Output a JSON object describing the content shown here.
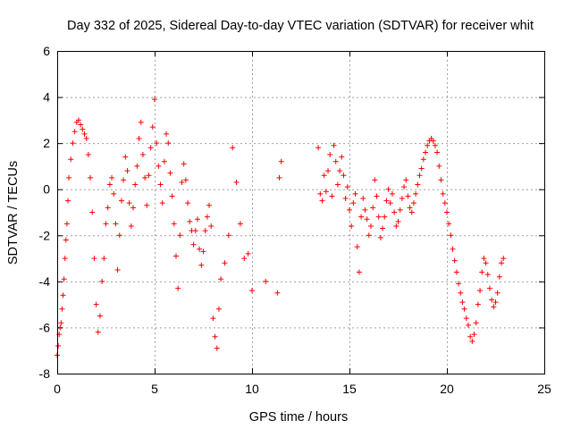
{
  "chart_data": {
    "type": "scatter",
    "title": "Day 332 of 2025, Sidereal Day-to-day VTEC variation (SDTVAR) for receiver whit",
    "xlabel": "GPS time / hours",
    "ylabel": "SDTVAR / TECUs",
    "xlim": [
      0,
      25
    ],
    "ylim": [
      -8,
      6
    ],
    "xticks": [
      "0",
      "5",
      "10",
      "15",
      "20",
      "25"
    ],
    "yticks": [
      "-8",
      "-6",
      "-4",
      "-2",
      "0",
      "2",
      "4",
      "6"
    ],
    "grid": true,
    "marker": "plus",
    "color": "#ff0000",
    "series": [
      {
        "name": "SDTVAR",
        "x": [
          0.0,
          0.05,
          0.1,
          0.15,
          0.2,
          0.25,
          0.3,
          0.35,
          0.4,
          0.45,
          0.5,
          0.55,
          0.6,
          0.7,
          0.8,
          0.9,
          1.0,
          1.1,
          1.2,
          1.3,
          1.4,
          1.5,
          1.6,
          1.7,
          1.8,
          1.9,
          2.0,
          2.1,
          2.2,
          2.3,
          2.4,
          2.5,
          2.6,
          2.7,
          2.8,
          2.9,
          3.0,
          3.1,
          3.2,
          3.3,
          3.4,
          3.5,
          3.6,
          3.7,
          3.8,
          3.9,
          4.0,
          4.1,
          4.2,
          4.3,
          4.4,
          4.5,
          4.6,
          4.7,
          4.8,
          4.9,
          5.0,
          5.1,
          5.2,
          5.3,
          5.4,
          5.5,
          5.6,
          5.7,
          5.8,
          5.9,
          6.0,
          6.1,
          6.2,
          6.3,
          6.4,
          6.5,
          6.6,
          6.7,
          6.8,
          6.9,
          7.0,
          7.1,
          7.2,
          7.3,
          7.4,
          7.5,
          7.6,
          7.7,
          7.8,
          7.9,
          8.0,
          8.1,
          8.2,
          8.3,
          8.4,
          8.6,
          8.8,
          9.0,
          9.2,
          9.4,
          9.6,
          9.8,
          10.0,
          10.7,
          11.3,
          11.4,
          11.5,
          13.4,
          13.5,
          13.6,
          13.7,
          13.8,
          13.9,
          14.0,
          14.1,
          14.2,
          14.3,
          14.4,
          14.5,
          14.6,
          14.7,
          14.8,
          14.9,
          15.0,
          15.1,
          15.2,
          15.3,
          15.4,
          15.5,
          15.6,
          15.7,
          15.8,
          15.9,
          16.0,
          16.1,
          16.2,
          16.3,
          16.4,
          16.5,
          16.6,
          16.7,
          16.8,
          16.9,
          17.0,
          17.1,
          17.2,
          17.3,
          17.4,
          17.5,
          17.6,
          17.7,
          17.8,
          17.9,
          18.0,
          18.1,
          18.2,
          18.3,
          18.4,
          18.5,
          18.6,
          18.7,
          18.8,
          18.9,
          19.0,
          19.1,
          19.2,
          19.3,
          19.4,
          19.5,
          19.6,
          19.7,
          19.8,
          19.9,
          20.0,
          20.1,
          20.2,
          20.3,
          20.4,
          20.5,
          20.6,
          20.7,
          20.8,
          20.9,
          21.0,
          21.1,
          21.2,
          21.3,
          21.4,
          21.5,
          21.6,
          21.7,
          21.8,
          21.9,
          22.0,
          22.1,
          22.2,
          22.3,
          22.4,
          22.5,
          22.6,
          22.7,
          22.8,
          22.9
        ],
        "y": [
          -7.2,
          -6.8,
          -6.3,
          -6.0,
          -5.8,
          -5.2,
          -4.6,
          -3.9,
          -3.0,
          -2.2,
          -1.5,
          -0.5,
          0.5,
          1.3,
          2.0,
          2.5,
          2.9,
          3.0,
          2.8,
          2.6,
          2.4,
          2.2,
          1.5,
          0.5,
          -1.0,
          -3.0,
          -5.0,
          -6.2,
          -5.5,
          -4.0,
          -3.0,
          -1.5,
          -0.8,
          0.2,
          0.5,
          -0.2,
          -1.5,
          -3.5,
          -2.0,
          -0.5,
          0.4,
          1.4,
          0.8,
          -0.6,
          -1.6,
          -0.8,
          0.2,
          1.0,
          2.2,
          2.9,
          1.5,
          0.5,
          -0.7,
          0.6,
          1.8,
          2.7,
          3.9,
          2.0,
          1.0,
          0.2,
          -0.6,
          1.2,
          2.4,
          2.0,
          0.7,
          -0.3,
          -1.5,
          -2.9,
          -4.3,
          -2.0,
          0.3,
          1.1,
          0.4,
          -0.6,
          -1.4,
          -1.8,
          -2.4,
          -1.8,
          -1.3,
          -2.6,
          -3.3,
          -2.7,
          -1.8,
          -1.2,
          -0.7,
          -1.6,
          -5.6,
          -6.4,
          -6.9,
          -5.2,
          -3.9,
          -3.2,
          -2.0,
          1.8,
          0.3,
          -1.5,
          -3.0,
          -2.8,
          -4.4,
          -4.0,
          -4.5,
          0.5,
          1.2,
          1.8,
          -0.2,
          -0.5,
          0.6,
          -0.1,
          0.8,
          1.5,
          -0.3,
          1.9,
          1.2,
          0.2,
          0.8,
          1.4,
          0.6,
          -0.4,
          0.1,
          -0.9,
          -1.6,
          -0.6,
          -0.2,
          -2.5,
          -3.6,
          -1.2,
          -0.4,
          -0.9,
          -1.3,
          -2.0,
          -1.6,
          -0.8,
          0.4,
          -0.3,
          -1.2,
          -2.1,
          -1.7,
          -1.2,
          -0.5,
          0.0,
          -0.6,
          -0.2,
          -1.0,
          -1.6,
          -1.4,
          -0.9,
          -0.4,
          0.1,
          0.4,
          -0.3,
          -0.8,
          -1.0,
          -0.6,
          -0.2,
          0.2,
          0.6,
          0.9,
          1.3,
          1.6,
          1.9,
          2.1,
          2.2,
          2.1,
          1.9,
          1.6,
          1.0,
          0.4,
          -0.2,
          -0.6,
          -1.0,
          -1.5,
          -2.0,
          -2.6,
          -3.1,
          -3.6,
          -4.1,
          -4.5,
          -4.9,
          -5.2,
          -5.6,
          -5.9,
          -6.4,
          -6.6,
          -6.3,
          -5.8,
          -5.0,
          -4.4,
          -3.6,
          -3.0,
          -3.2,
          -3.7,
          -4.3,
          -4.8,
          -5.1,
          -4.9,
          -4.5,
          -3.8,
          -3.2,
          -3.0
        ]
      }
    ]
  }
}
